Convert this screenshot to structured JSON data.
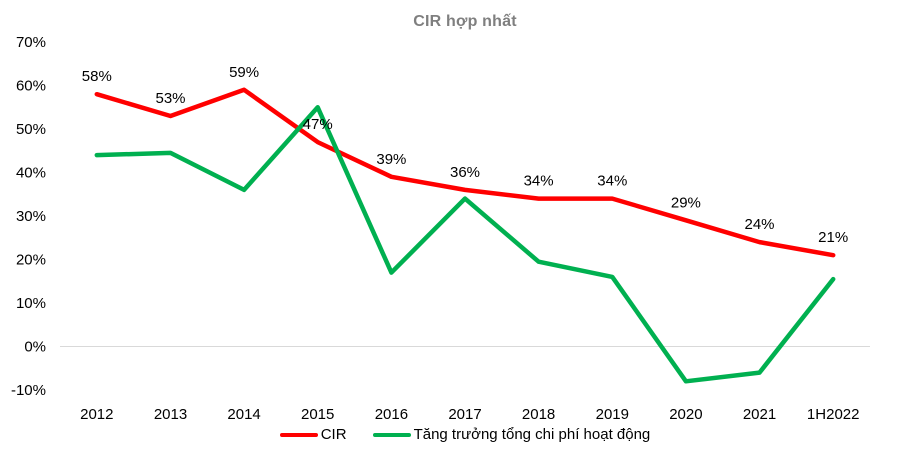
{
  "colors": {
    "cir_line": "#FF0000",
    "cost_growth_line": "#00B050",
    "title_text": "#7F7F7F",
    "gridline": "#D9D9D9",
    "axis_text": "#000000"
  },
  "chart_data": {
    "type": "line",
    "title": "CIR hợp nhất",
    "categories": [
      "2012",
      "2013",
      "2014",
      "2015",
      "2016",
      "2017",
      "2018",
      "2019",
      "2020",
      "2021",
      "1H2022"
    ],
    "series": [
      {
        "name": "CIR",
        "color": "#FF0000",
        "values": [
          58,
          53,
          59,
          47,
          39,
          36,
          34,
          34,
          29,
          24,
          21
        ],
        "labels": [
          "58%",
          "53%",
          "59%",
          "47%",
          "39%",
          "36%",
          "34%",
          "34%",
          "29%",
          "24%",
          "21%"
        ],
        "show_labels": true
      },
      {
        "name": "Tăng trưởng tổng chi phí hoạt động",
        "color": "#00B050",
        "values": [
          44,
          44.5,
          36,
          55,
          17,
          34,
          19.5,
          16,
          -8,
          -6,
          15.5
        ],
        "labels": [],
        "show_labels": false
      }
    ],
    "y_axis": {
      "min": -10,
      "max": 70,
      "step": 10,
      "tick_labels": [
        "70%",
        "60%",
        "50%",
        "40%",
        "30%",
        "20%",
        "10%",
        "0%",
        "-10%"
      ]
    },
    "gridlines": "horizontal line at 0% only",
    "legend_position": "bottom"
  }
}
